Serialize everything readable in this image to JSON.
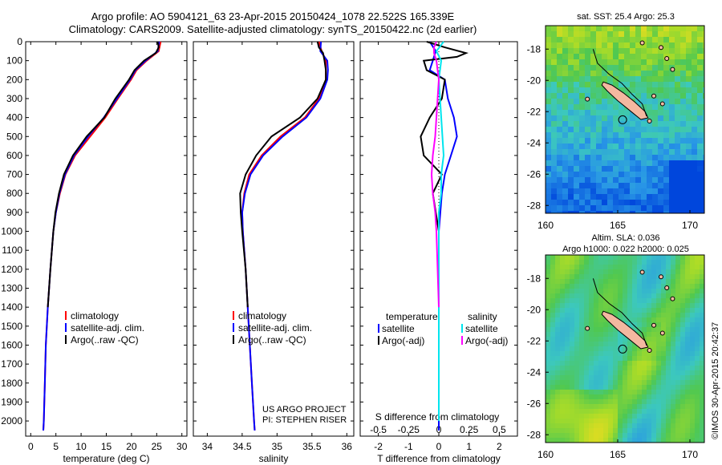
{
  "header": {
    "line1": "Argo profile: AO 5904121_63 23-Apr-2015 20150424_1078 22.522S 165.339E",
    "line2": "Climatology: CARS2009. Satellite-adjusted climatology: synTS_20150422.nc (2d earlier)"
  },
  "credit": {
    "project": "US ARGO PROJECT",
    "pi": "PI: STEPHEN RISER"
  },
  "watermark": "©IMOS 30-Apr-2015 20:42:37",
  "colors": {
    "climatology": "#ff0000",
    "satellite": "#0000ff",
    "argo": "#000000",
    "sat_salinity": "#00e5ee",
    "argo_salinity": "#ff00ff"
  },
  "chart_data": [
    {
      "type": "line",
      "xlabel": "temperature (deg C)",
      "ylabel": "",
      "xlim": [
        -1,
        31
      ],
      "ylim": [
        2080,
        0
      ],
      "xticks": [
        0,
        5,
        10,
        15,
        20,
        25,
        30
      ],
      "yticks": [
        0,
        100,
        200,
        300,
        400,
        500,
        600,
        700,
        800,
        900,
        1000,
        1100,
        1200,
        1300,
        1400,
        1500,
        1600,
        1700,
        1800,
        1900,
        2000
      ],
      "legend": [
        "climatology",
        "satellite-adj. clim.",
        "Argo(..raw -QC)"
      ],
      "series": [
        {
          "name": "climatology",
          "color": "#ff0000",
          "depth": [
            0,
            50,
            100,
            150,
            200,
            300,
            400,
            500,
            600,
            700,
            800,
            900,
            1000,
            1200,
            1400,
            1600,
            1800,
            2000,
            2050
          ],
          "values": [
            25.8,
            25.4,
            23.0,
            21.0,
            19.9,
            17.3,
            14.8,
            11.8,
            8.8,
            6.9,
            5.8,
            5.0,
            4.5,
            3.9,
            3.4,
            3.0,
            2.8,
            2.6,
            2.5
          ]
        },
        {
          "name": "satellite-adj. clim.",
          "color": "#0000ff",
          "depth": [
            0,
            50,
            100,
            150,
            200,
            300,
            400,
            500,
            600,
            700,
            800,
            900,
            1000,
            1200,
            1400,
            1600,
            1800,
            2000,
            2050
          ],
          "values": [
            25.5,
            25.2,
            22.8,
            20.8,
            19.7,
            17.1,
            14.5,
            11.4,
            8.6,
            6.8,
            5.7,
            5.0,
            4.5,
            3.9,
            3.4,
            3.0,
            2.8,
            2.6,
            2.5
          ]
        },
        {
          "name": "Argo(..raw -QC)",
          "color": "#000000",
          "depth": [
            0,
            30,
            60,
            100,
            150,
            200,
            300,
            400,
            500,
            600,
            700,
            800,
            900,
            1000,
            1200,
            1400
          ],
          "values": [
            25.2,
            25.4,
            24.8,
            22.5,
            20.6,
            19.5,
            16.8,
            14.6,
            11.1,
            8.4,
            6.6,
            5.6,
            4.9,
            4.5,
            3.9,
            3.4
          ]
        }
      ]
    },
    {
      "type": "line",
      "xlabel": "salinity",
      "ylabel": "",
      "xlim": [
        33.8,
        36.1
      ],
      "ylim": [
        2080,
        0
      ],
      "xticks": [
        34,
        34.5,
        35,
        35.5,
        36
      ],
      "legend": [
        "climatology",
        "satellite-adj. clim.",
        "Argo(..raw -QC)"
      ],
      "series": [
        {
          "name": "climatology",
          "color": "#ff0000",
          "depth": [
            0,
            50,
            100,
            150,
            200,
            300,
            400,
            500,
            600,
            700,
            800,
            900,
            1000,
            1200,
            1400,
            1600,
            1800,
            2000,
            2050
          ],
          "values": [
            35.6,
            35.64,
            35.7,
            35.7,
            35.7,
            35.6,
            35.4,
            35.05,
            34.78,
            34.6,
            34.53,
            34.5,
            34.51,
            34.55,
            34.58,
            34.61,
            34.64,
            34.67,
            34.68
          ]
        },
        {
          "name": "satellite-adj. clim.",
          "color": "#0000ff",
          "depth": [
            0,
            50,
            100,
            150,
            200,
            300,
            400,
            500,
            600,
            700,
            800,
            900,
            1000,
            1200,
            1400,
            1600,
            1800,
            2000,
            2050
          ],
          "values": [
            35.63,
            35.62,
            35.72,
            35.73,
            35.72,
            35.62,
            35.42,
            35.08,
            34.8,
            34.62,
            34.54,
            34.5,
            34.51,
            34.55,
            34.58,
            34.61,
            34.64,
            34.67,
            34.68
          ]
        },
        {
          "name": "Argo(..raw -QC)",
          "color": "#000000",
          "depth": [
            0,
            30,
            60,
            100,
            150,
            200,
            300,
            400,
            500,
            600,
            700,
            800,
            900,
            1000,
            1200,
            1400
          ],
          "values": [
            35.58,
            35.6,
            35.66,
            35.68,
            35.7,
            35.7,
            35.58,
            35.33,
            34.92,
            34.7,
            34.55,
            34.47,
            34.48,
            34.5,
            34.55,
            34.58
          ]
        }
      ]
    },
    {
      "type": "line",
      "xlabel": "T difference from climatology",
      "xlabel_top": "S difference from climatology",
      "ylabel": "",
      "xlim": [
        -2.6,
        2.6
      ],
      "ylim": [
        2080,
        0
      ],
      "xticks_bottom": [
        -2,
        -1,
        0,
        1,
        2
      ],
      "xticks_top": [
        "-0.5",
        "-0.25",
        "0",
        "0.25",
        "0.5"
      ],
      "legend_temperature": [
        "temperature",
        "satellite",
        "Argo(-adj)"
      ],
      "legend_salinity": [
        "salinity",
        "satellite",
        "Argo(-adj)"
      ],
      "series": [
        {
          "name": "temperature satellite",
          "color": "#0000ff",
          "depth": [
            0,
            50,
            100,
            150,
            200,
            300,
            400,
            500,
            600,
            700,
            800,
            900,
            1000,
            1200,
            1400,
            1600,
            1800,
            2000,
            2050
          ],
          "values": [
            -0.3,
            -0.1,
            -0.2,
            -0.3,
            0.2,
            0.3,
            0.5,
            0.6,
            0.4,
            0.2,
            0.1,
            0.05,
            0.0,
            0.0,
            0.0,
            0.0,
            0.0,
            0.0,
            0.0
          ]
        },
        {
          "name": "temperature Argo(-adj)",
          "color": "#000000",
          "depth": [
            0,
            30,
            60,
            80,
            100,
            150,
            200,
            300,
            400,
            500,
            600,
            700,
            800,
            900,
            1000,
            1200,
            1400
          ],
          "values": [
            -0.4,
            0.2,
            0.9,
            0.6,
            -0.5,
            -0.4,
            0.2,
            0.1,
            -0.3,
            -0.6,
            -0.5,
            0.1,
            -0.2,
            -0.1,
            0.0,
            0.0,
            0.0
          ]
        },
        {
          "name": "salinity satellite",
          "color": "#00e5ee",
          "depth": [
            0,
            50,
            100,
            150,
            200,
            300,
            400,
            500,
            600,
            700,
            800,
            900,
            1000,
            1200,
            1400,
            1600,
            1800,
            2000
          ],
          "values": [
            0.04,
            -0.02,
            0.02,
            0.01,
            0.0,
            0.01,
            0.02,
            0.03,
            0.04,
            0.02,
            0.02,
            0.0,
            0.0,
            0.0,
            0.0,
            0.0,
            0.0,
            0.0
          ]
        },
        {
          "name": "salinity Argo(-adj)",
          "color": "#ff00ff",
          "depth": [
            0,
            30,
            60,
            100,
            150,
            200,
            300,
            400,
            500,
            600,
            700,
            800,
            900,
            1000,
            1200,
            1400
          ],
          "values": [
            -0.02,
            -0.04,
            -0.04,
            -0.02,
            -0.01,
            0.0,
            -0.01,
            -0.02,
            -0.03,
            -0.05,
            -0.06,
            -0.05,
            -0.03,
            -0.02,
            -0.01,
            0.0
          ]
        }
      ]
    },
    {
      "type": "heatmap",
      "title": "sat. SST: 25.4  Argo: 25.3",
      "xlim": [
        160,
        171
      ],
      "ylim": [
        -28.5,
        -16.5
      ],
      "xticks": [
        160,
        165,
        170
      ],
      "yticks": [
        -18,
        -20,
        -22,
        -24,
        -26,
        -28
      ],
      "argo_position": [
        165.34,
        -22.52
      ]
    },
    {
      "type": "heatmap",
      "title": "Altim. SLA: 0.036",
      "subtitle": "Argo h1000: 0.022  h2000: 0.025",
      "xlim": [
        160,
        171
      ],
      "ylim": [
        -28.5,
        -16.5
      ],
      "xticks": [
        160,
        165,
        170
      ],
      "yticks": [
        -18,
        -20,
        -22,
        -24,
        -26,
        -28
      ],
      "argo_position": [
        165.34,
        -22.52
      ]
    }
  ]
}
